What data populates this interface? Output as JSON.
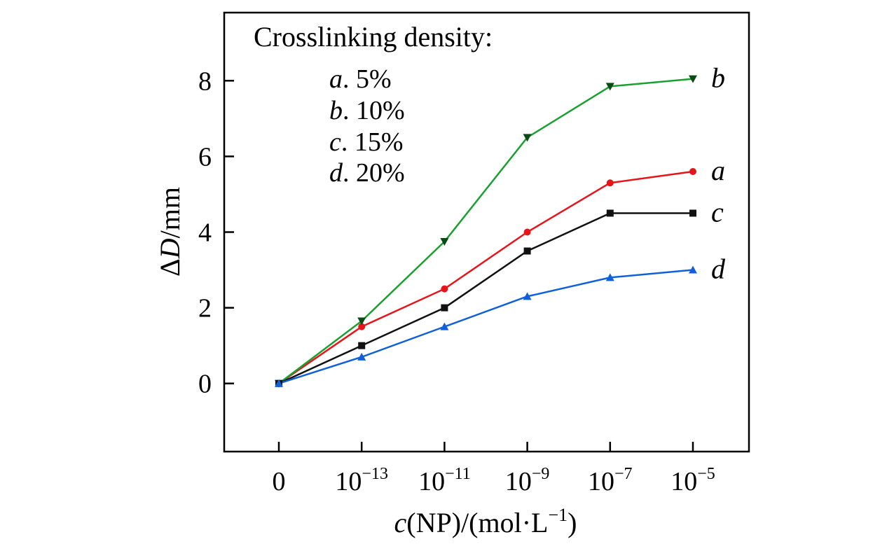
{
  "chart_data": {
    "type": "line",
    "x_ticks": [
      {
        "base": "0",
        "exp": ""
      },
      {
        "base": "10",
        "exp": "−13"
      },
      {
        "base": "10",
        "exp": "−11"
      },
      {
        "base": "10",
        "exp": "−9"
      },
      {
        "base": "10",
        "exp": "−7"
      },
      {
        "base": "10",
        "exp": "−5"
      }
    ],
    "y_ticks": [
      "0",
      "2",
      "4",
      "6",
      "8"
    ],
    "ylim": [
      -1.8,
      9.8
    ],
    "xlabel": {
      "var": "c",
      "rest": "(NP)/(mol·L",
      "sup": "−1",
      "close": ")"
    },
    "ylabel": {
      "delta": "Δ",
      "var": "D",
      "unit": "/mm"
    },
    "legend": {
      "title": "Crosslinking density:",
      "items": [
        {
          "key": "a",
          "text": ". 5%"
        },
        {
          "key": "b",
          "text": ". 10%"
        },
        {
          "key": "c",
          "text": ". 15%"
        },
        {
          "key": "d",
          "text": ". 20%"
        }
      ]
    },
    "series": [
      {
        "name": "a",
        "label": "a",
        "color": "#e8141a",
        "marker": "circle",
        "values": [
          0,
          1.5,
          2.5,
          4.0,
          5.3,
          5.6
        ]
      },
      {
        "name": "b",
        "label": "b",
        "color": "#1aa030",
        "marker": "triangle-down",
        "marker_color": "#0a4a14",
        "values": [
          0,
          1.65,
          3.75,
          6.5,
          7.85,
          8.05
        ]
      },
      {
        "name": "c",
        "label": "c",
        "color": "#111111",
        "marker": "square",
        "values": [
          0,
          1.0,
          2.0,
          3.5,
          4.5,
          4.5
        ]
      },
      {
        "name": "d",
        "label": "d",
        "color": "#1060d8",
        "marker": "triangle-up",
        "values": [
          0,
          0.7,
          1.5,
          2.3,
          2.8,
          3.0
        ]
      }
    ]
  }
}
